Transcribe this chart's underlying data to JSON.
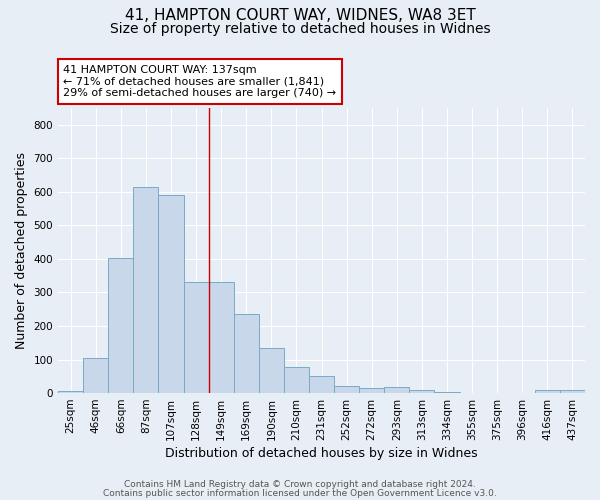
{
  "title": "41, HAMPTON COURT WAY, WIDNES, WA8 3ET",
  "subtitle": "Size of property relative to detached houses in Widnes",
  "xlabel": "Distribution of detached houses by size in Widnes",
  "ylabel": "Number of detached properties",
  "bar_labels": [
    "25sqm",
    "46sqm",
    "66sqm",
    "87sqm",
    "107sqm",
    "128sqm",
    "149sqm",
    "169sqm",
    "190sqm",
    "210sqm",
    "231sqm",
    "252sqm",
    "272sqm",
    "293sqm",
    "313sqm",
    "334sqm",
    "355sqm",
    "375sqm",
    "396sqm",
    "416sqm",
    "437sqm"
  ],
  "bar_values": [
    7,
    105,
    403,
    615,
    590,
    330,
    330,
    237,
    135,
    78,
    52,
    22,
    14,
    17,
    8,
    4,
    0,
    0,
    0,
    8,
    9
  ],
  "bar_color": "#c8d8ea",
  "bar_edge_color": "#7aaac8",
  "vline_x": 5.5,
  "annotation_text": "41 HAMPTON COURT WAY: 137sqm\n← 71% of detached houses are smaller (1,841)\n29% of semi-detached houses are larger (740) →",
  "annotation_box_color": "#ffffff",
  "annotation_box_edge": "#cc0000",
  "ylim": [
    0,
    850
  ],
  "yticks": [
    0,
    100,
    200,
    300,
    400,
    500,
    600,
    700,
    800
  ],
  "footer1": "Contains HM Land Registry data © Crown copyright and database right 2024.",
  "footer2": "Contains public sector information licensed under the Open Government Licence v3.0.",
  "bg_color": "#e8eef5",
  "plot_bg_color": "#e8eef5",
  "grid_color": "#ffffff",
  "title_fontsize": 11,
  "subtitle_fontsize": 10,
  "axis_label_fontsize": 9,
  "tick_fontsize": 7.5,
  "ann_fontsize": 8
}
